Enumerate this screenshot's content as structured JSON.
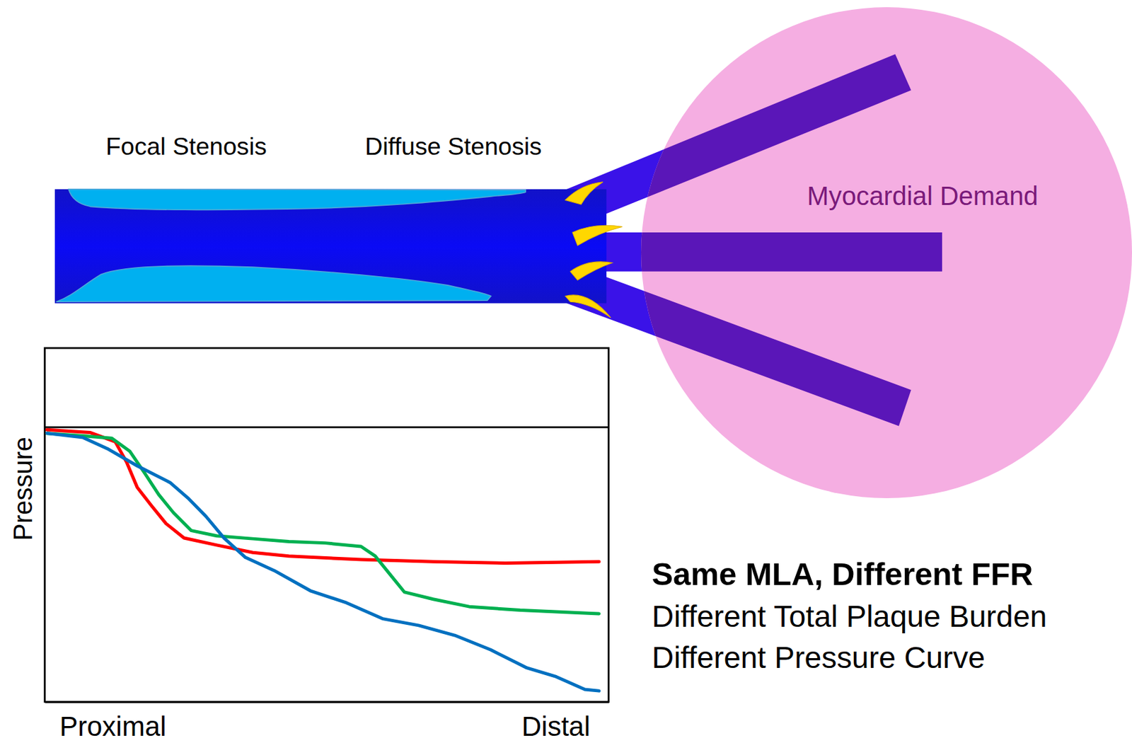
{
  "chart_data": {
    "type": "line",
    "ylabel": "Pressure",
    "xlim": [
      0,
      100
    ],
    "ylim": [
      0,
      100
    ],
    "xticks": [
      {
        "value": 0,
        "label": "Proximal"
      },
      {
        "value": 100,
        "label": "Distal"
      }
    ],
    "yticks": [],
    "tick_labels": "x",
    "grid": false,
    "reference_pressure": 77.6,
    "series": [
      {
        "color": "#ff0000",
        "x": [
          0.4,
          8.1,
          12.5,
          14.5,
          16.4,
          18.9,
          21.5,
          24.7,
          30.5,
          36.9,
          43.3,
          56.1,
          68.9,
          81.7,
          98.3
        ],
        "values": [
          76.9,
          76.1,
          73.5,
          67.8,
          60.6,
          55.5,
          50.4,
          46.3,
          44.3,
          42.2,
          41.2,
          40.2,
          39.6,
          39.2,
          39.6
        ]
      },
      {
        "color": "#00b050",
        "x": [
          0.4,
          7.4,
          11.9,
          15.1,
          17.7,
          20.2,
          22.8,
          26.0,
          30.5,
          36.9,
          43.3,
          49.7,
          56.1,
          58.6,
          61.2,
          63.8,
          68.9,
          75.3,
          84.3,
          98.3
        ],
        "values": [
          75.9,
          75.1,
          74.5,
          70.8,
          64.7,
          58.6,
          53.5,
          48.4,
          46.9,
          46.1,
          45.3,
          44.9,
          43.9,
          41.2,
          36.1,
          31.0,
          29.0,
          26.9,
          25.9,
          24.9
        ]
      },
      {
        "color": "#0070c0",
        "x": [
          0.4,
          6.8,
          11.3,
          16.4,
          22.2,
          25.4,
          28.6,
          31.8,
          35.6,
          40.7,
          47.1,
          53.5,
          59.9,
          66.3,
          72.7,
          79.1,
          85.5,
          90.7,
          95.8,
          98.3
        ],
        "values": [
          75.9,
          74.7,
          71.4,
          66.7,
          62.0,
          57.6,
          52.4,
          46.3,
          40.8,
          37.1,
          31.4,
          28.0,
          23.5,
          21.6,
          18.8,
          14.7,
          9.6,
          7.1,
          3.5,
          3.1
        ]
      }
    ]
  },
  "diagram": {
    "stenosis_labels": [
      "Focal Stenosis",
      "Diffuse Stenosis"
    ],
    "demand_label": "Myocardial Demand"
  },
  "caption": {
    "title": "Same MLA, Different FFR",
    "lines": [
      "Different Total Plaque Burden",
      "Different Pressure Curve"
    ]
  }
}
